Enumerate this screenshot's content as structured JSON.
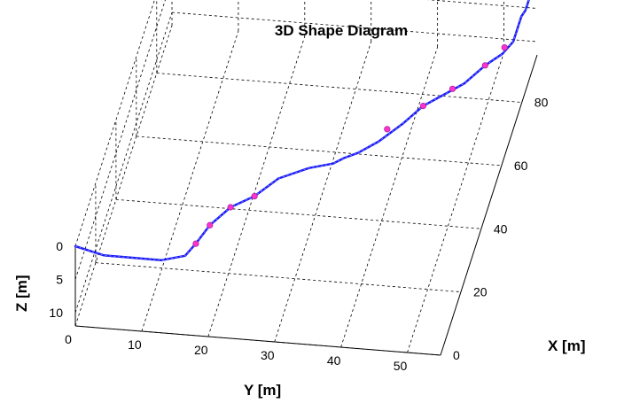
{
  "chart_data": {
    "type": "line",
    "title": "3D Shape Diagram",
    "xlabel": "X [m]",
    "ylabel": "Y [m]",
    "zlabel": "Z [m]",
    "x_ticks": [
      "0",
      "20",
      "40",
      "60",
      "80"
    ],
    "y_ticks": [
      "0",
      "10",
      "20",
      "30",
      "40",
      "50"
    ],
    "z_ticks": [
      "0",
      "5",
      "10"
    ],
    "xlim": [
      0,
      95
    ],
    "ylim": [
      0,
      55
    ],
    "zlim": [
      0,
      12
    ],
    "z_reversed": true,
    "grid": true,
    "line_color": "#1a1aff",
    "marker_color": "#ff33cc",
    "series": [
      {
        "x": [
          0,
          2,
          4,
          6,
          10,
          14,
          18,
          22,
          26,
          30,
          34,
          38,
          42,
          46,
          50,
          54,
          58,
          62,
          66,
          70,
          74,
          78,
          82,
          86,
          90,
          94
        ],
        "y": [
          0,
          4,
          8,
          12,
          15,
          16,
          17.5,
          20,
          23,
          26,
          30,
          33,
          34,
          35.5,
          38,
          41,
          43.5,
          46,
          48.5,
          51,
          53,
          54,
          54,
          54,
          54,
          54
        ],
        "z": [
          0,
          2,
          3,
          4,
          5,
          5,
          4,
          3,
          3,
          2,
          2,
          3,
          4,
          5,
          5,
          4,
          3,
          3,
          3,
          2,
          2,
          2,
          2,
          2,
          3,
          3
        ]
      }
    ],
    "markers": [
      {
        "x": 14,
        "y": 16,
        "z": 5
      },
      {
        "x": 18,
        "y": 17.5,
        "z": 4
      },
      {
        "x": 22,
        "y": 20,
        "z": 3
      },
      {
        "x": 26,
        "y": 23,
        "z": 3
      },
      {
        "x": 52,
        "y": 39,
        "z": 4
      },
      {
        "x": 58,
        "y": 43.5,
        "z": 3
      },
      {
        "x": 64,
        "y": 47,
        "z": 3
      },
      {
        "x": 70,
        "y": 51,
        "z": 2
      },
      {
        "x": 76,
        "y": 53,
        "z": 2
      }
    ]
  }
}
